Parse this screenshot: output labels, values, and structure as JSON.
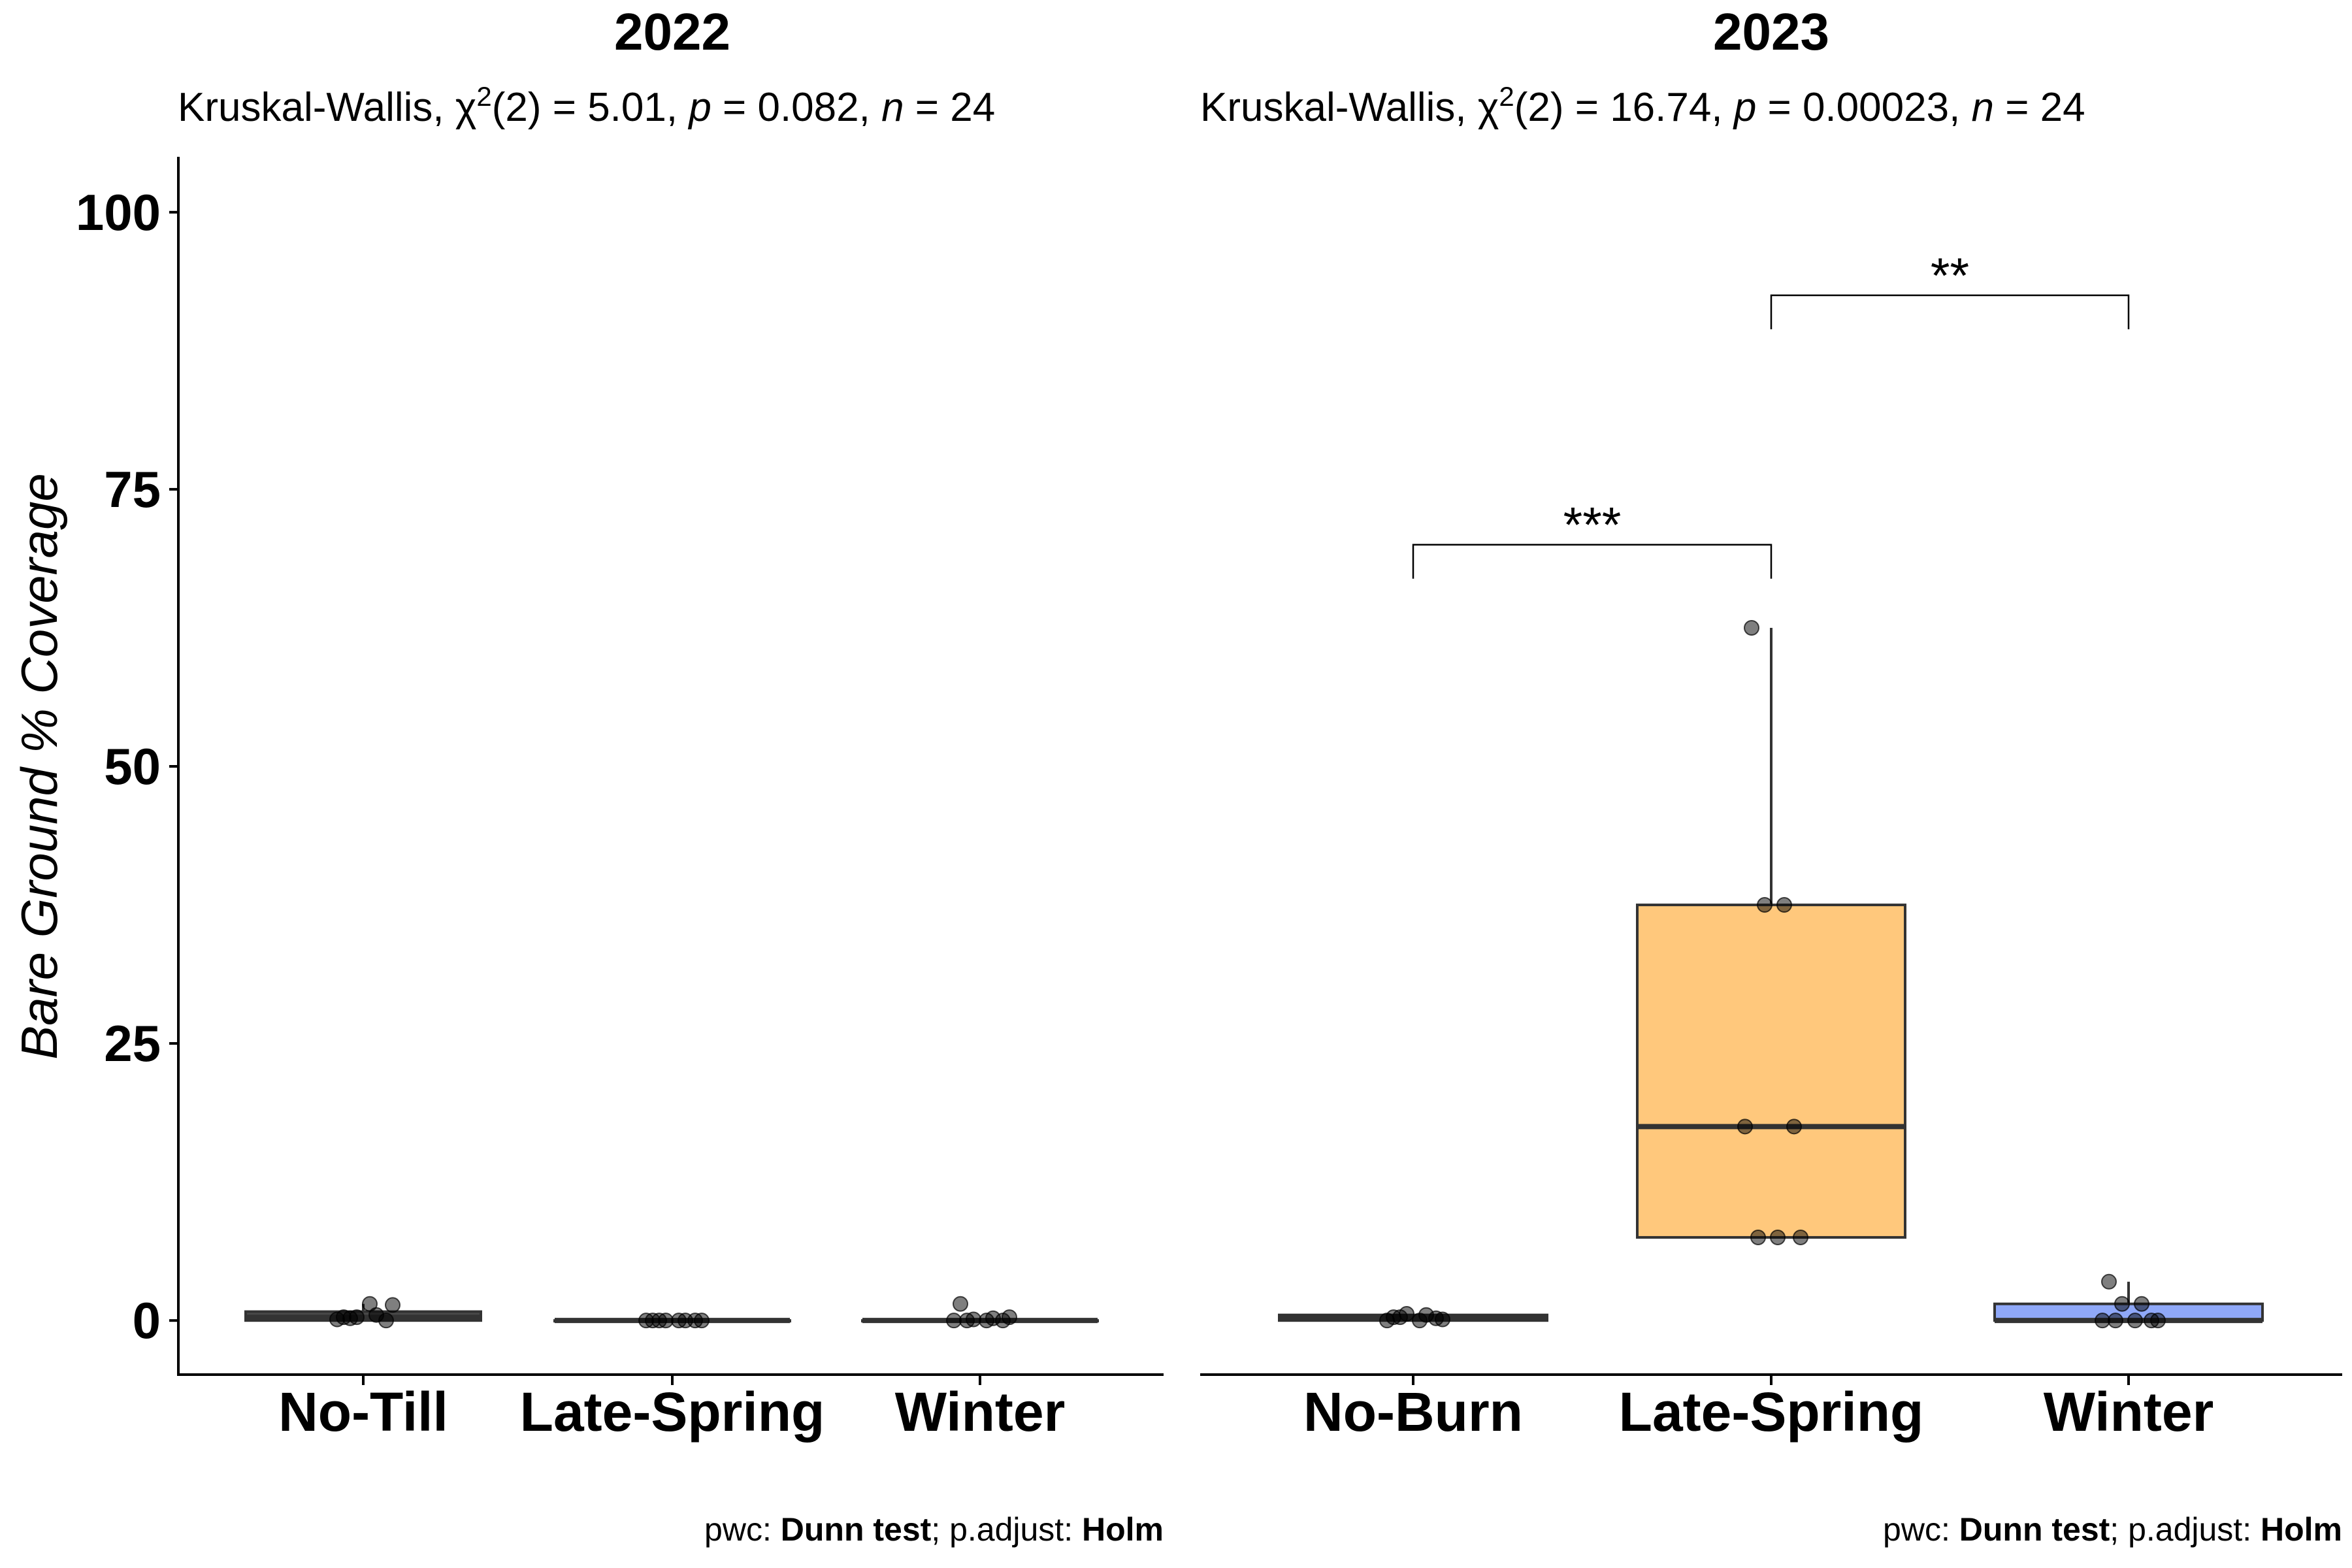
{
  "chart_data": [
    {
      "type": "box",
      "title": "2022",
      "subtitle": {
        "test": "Kruskal-Wallis, ",
        "chi": "χ",
        "sup": "2",
        "df": "(2) = 5.01, ",
        "p_lab": "p",
        "p_val": " = 0.082, ",
        "n_lab": "n",
        "n_val": " = 24"
      },
      "ylabel": "Bare Ground % Coverage",
      "ylim": [
        -5,
        105
      ],
      "yticks": [
        "0",
        "25",
        "50",
        "75",
        "100"
      ],
      "categories": [
        "No-Till",
        "Late-Spring",
        "Winter"
      ],
      "boxes": [
        {
          "min": 0,
          "q1": 0,
          "median": 0.3,
          "q3": 0.8,
          "max": 1.5,
          "fill": "#4a4a4a",
          "points": [
            0.3,
            0.5,
            0.3,
            0,
            0.1,
            1.5,
            1.4,
            0.2
          ]
        },
        {
          "min": 0,
          "q1": 0,
          "median": 0,
          "q3": 0,
          "max": 0,
          "fill": "#4a4a4a",
          "points": [
            0,
            0,
            0,
            0,
            0,
            0,
            0,
            0
          ]
        },
        {
          "min": 0,
          "q1": 0,
          "median": 0,
          "q3": 0,
          "max": 0,
          "fill": "#4a4a4a",
          "points": [
            1.5,
            0.2,
            0.1,
            0,
            0,
            0,
            0.3,
            0
          ]
        }
      ],
      "caption": {
        "pre": "pwc: ",
        "test": "Dunn test",
        "mid": "; p.adjust: ",
        "adj": "Holm"
      }
    },
    {
      "type": "box",
      "title": "2023",
      "subtitle": {
        "test": "Kruskal-Wallis, ",
        "chi": "χ",
        "sup": "2",
        "df": "(2) = 16.74, ",
        "p_lab": "p",
        "p_val": " = 0.00023, ",
        "n_lab": "n",
        "n_val": " = 24"
      },
      "ylim": [
        -5,
        105
      ],
      "categories": [
        "No-Burn",
        "Late-Spring",
        "Winter"
      ],
      "boxes": [
        {
          "min": 0,
          "q1": 0,
          "median": 0.2,
          "q3": 0.5,
          "max": 0.6,
          "fill": "#3a3a3a",
          "points": [
            0.3,
            0.5,
            0.6,
            0.2,
            0,
            0,
            0.1,
            0.3
          ]
        },
        {
          "min": 7.5,
          "q1": 7.5,
          "median": 17.5,
          "q3": 37.5,
          "max": 62.5,
          "fill": "#FFC87C",
          "points": [
            62.5,
            37.5,
            37.5,
            17.5,
            17.5,
            7.5,
            7.5,
            7.5
          ]
        },
        {
          "min": 0,
          "q1": 0,
          "median": 0,
          "q3": 1.5,
          "max": 3.5,
          "fill": "#8FA8F8",
          "points": [
            3.5,
            1.5,
            1.5,
            0,
            0,
            0,
            0,
            0
          ]
        }
      ],
      "brackets": [
        {
          "from": 0,
          "to": 1,
          "label": "***",
          "y": 70
        },
        {
          "from": 1,
          "to": 2,
          "label": "**",
          "y": 92.5
        }
      ],
      "caption": {
        "pre": "pwc: ",
        "test": "Dunn test",
        "mid": "; p.adjust: ",
        "adj": "Holm"
      }
    }
  ]
}
